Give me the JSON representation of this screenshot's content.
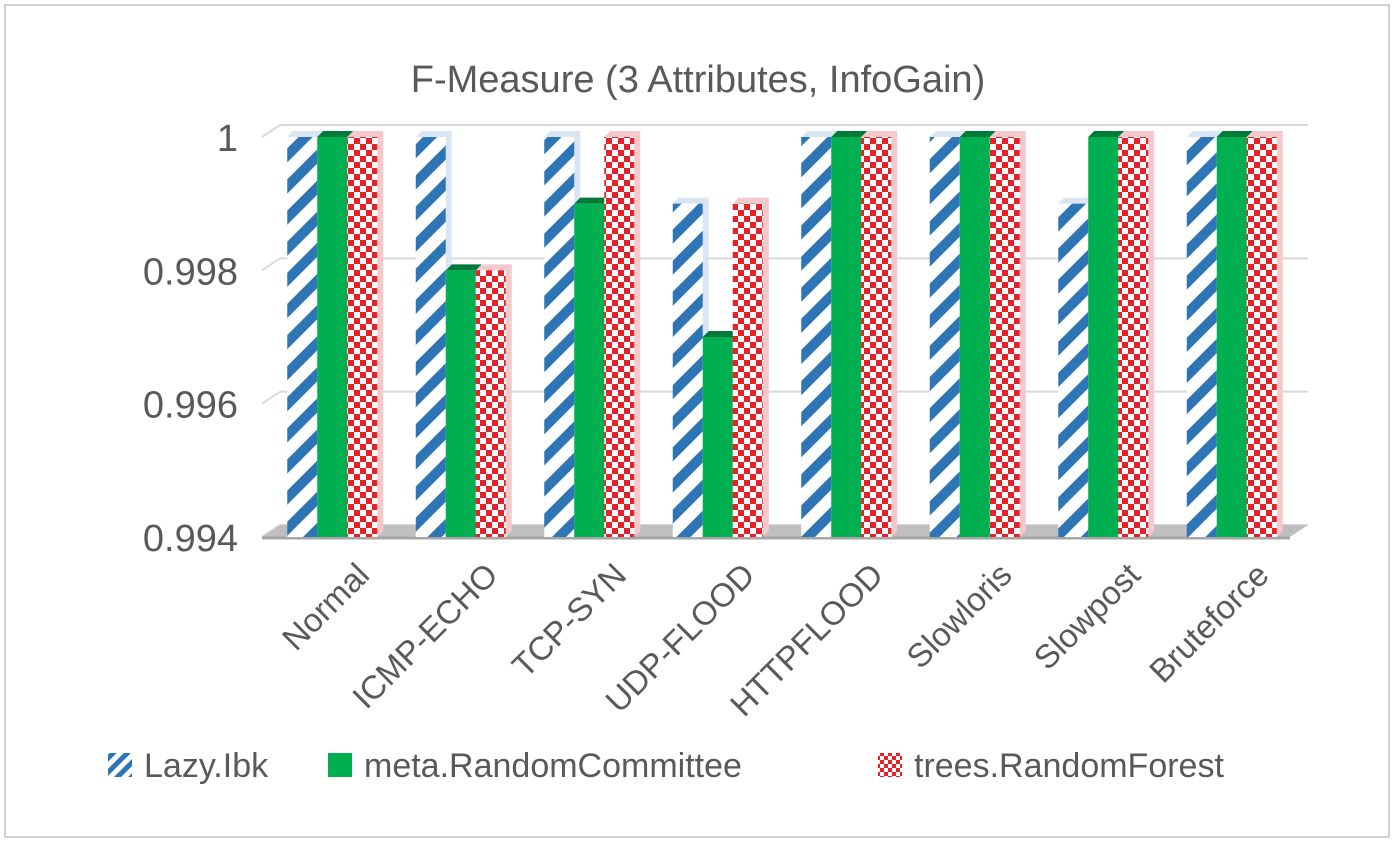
{
  "chart_data": {
    "type": "bar",
    "title": "F-Measure (3 Attributes, InfoGain)",
    "xlabel": "",
    "ylabel": "",
    "categories": [
      "Normal",
      "ICMP-ECHO",
      "TCP-SYN",
      "UDP-FLOOD",
      "HTTPFLOOD",
      "Slowloris",
      "Slowpost",
      "Bruteforce"
    ],
    "series": [
      {
        "name": "Lazy.Ibk",
        "values": [
          1,
          1,
          1,
          0.999,
          1,
          1,
          0.999,
          1
        ]
      },
      {
        "name": "meta.RandomCommittee",
        "values": [
          1,
          0.998,
          0.999,
          0.997,
          1,
          1,
          1,
          1
        ]
      },
      {
        "name": "trees.RandomForest",
        "values": [
          1,
          0.998,
          1,
          0.999,
          1,
          1,
          1,
          1
        ]
      }
    ],
    "ylim": [
      0.994,
      1
    ],
    "yticks": [
      "0.994",
      "0.996",
      "0.998",
      "1"
    ],
    "grid": true,
    "legend": "bottom",
    "colors": {
      "series1": "#2e75b6",
      "series2": "#00b050",
      "series3": "#e8202a"
    }
  }
}
